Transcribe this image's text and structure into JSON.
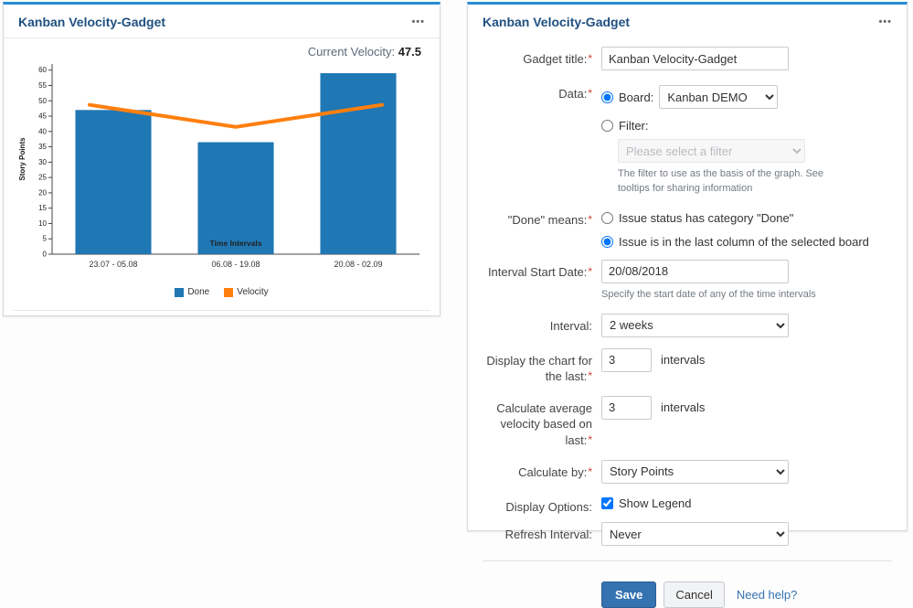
{
  "chart_panel": {
    "title": "Kanban Velocity-Gadget",
    "menu_icon": "•••",
    "current_velocity_label": "Current Velocity:",
    "current_velocity_value": "47.5"
  },
  "chart_data": {
    "type": "bar",
    "categories": [
      "23.07 - 05.08",
      "06.08 - 19.08",
      "20.08 - 02.09"
    ],
    "series": [
      {
        "name": "Done",
        "type": "bar",
        "color": "#1f77b4",
        "values": [
          47,
          36.5,
          59
        ]
      },
      {
        "name": "Velocity",
        "type": "line",
        "color": "#ff7f0e",
        "values": [
          47.5,
          41.5,
          47.5
        ]
      }
    ],
    "title": "",
    "xlabel": "Time Intervals",
    "ylabel": "Story Points",
    "ylim": [
      0,
      62
    ],
    "ytick_step": 5,
    "ytick_max": 60,
    "grid": false,
    "legend_position": "bottom"
  },
  "settings_panel": {
    "title": "Kanban Velocity-Gadget",
    "menu_icon": "•••",
    "required_marker": "*",
    "form": {
      "gadget_title": {
        "label": "Gadget title:",
        "value": "Kanban Velocity-Gadget",
        "required": true
      },
      "data_source": {
        "label": "Data:",
        "required": true,
        "board_label": "Board:",
        "board_value": "Kanban DEMO",
        "board_selected": true,
        "filter_label": "Filter:",
        "filter_selected": false,
        "filter_placeholder": "Please select a filter",
        "filter_help": "The filter to use as the basis of the graph. See tooltips for sharing information"
      },
      "done_means": {
        "label": "\"Done\" means:",
        "required": true,
        "options": [
          {
            "label": "Issue status has category \"Done\"",
            "selected": false
          },
          {
            "label": "Issue is in the last column of the selected board",
            "selected": true
          }
        ]
      },
      "interval_start_date": {
        "label": "Interval Start Date:",
        "required": true,
        "value": "20/08/2018",
        "help": "Specify the start date of any of the time intervals"
      },
      "interval": {
        "label": "Interval:",
        "value": "2 weeks"
      },
      "display_chart_for": {
        "label": "Display the chart for the last:",
        "required": true,
        "value": "3",
        "suffix": "intervals"
      },
      "calculate_average": {
        "label": "Calculate average velocity based on last:",
        "required": true,
        "value": "3",
        "suffix": "intervals"
      },
      "calculate_by": {
        "label": "Calculate by:",
        "required": true,
        "value": "Story Points"
      },
      "display_options": {
        "label": "Display Options:",
        "checkbox_label": "Show Legend",
        "checked": true
      },
      "refresh_interval": {
        "label": "Refresh Interval:",
        "value": "Never"
      }
    },
    "buttons": {
      "save": "Save",
      "cancel": "Cancel",
      "help_link": "Need help?"
    }
  },
  "colors": {
    "accent_bar": "#2a8bd4",
    "panel_title": "#205081",
    "save_button": "#3572b0",
    "link": "#3572b0",
    "required": "#d04437",
    "bar": "#1f77b4",
    "line": "#ff7f0e"
  }
}
